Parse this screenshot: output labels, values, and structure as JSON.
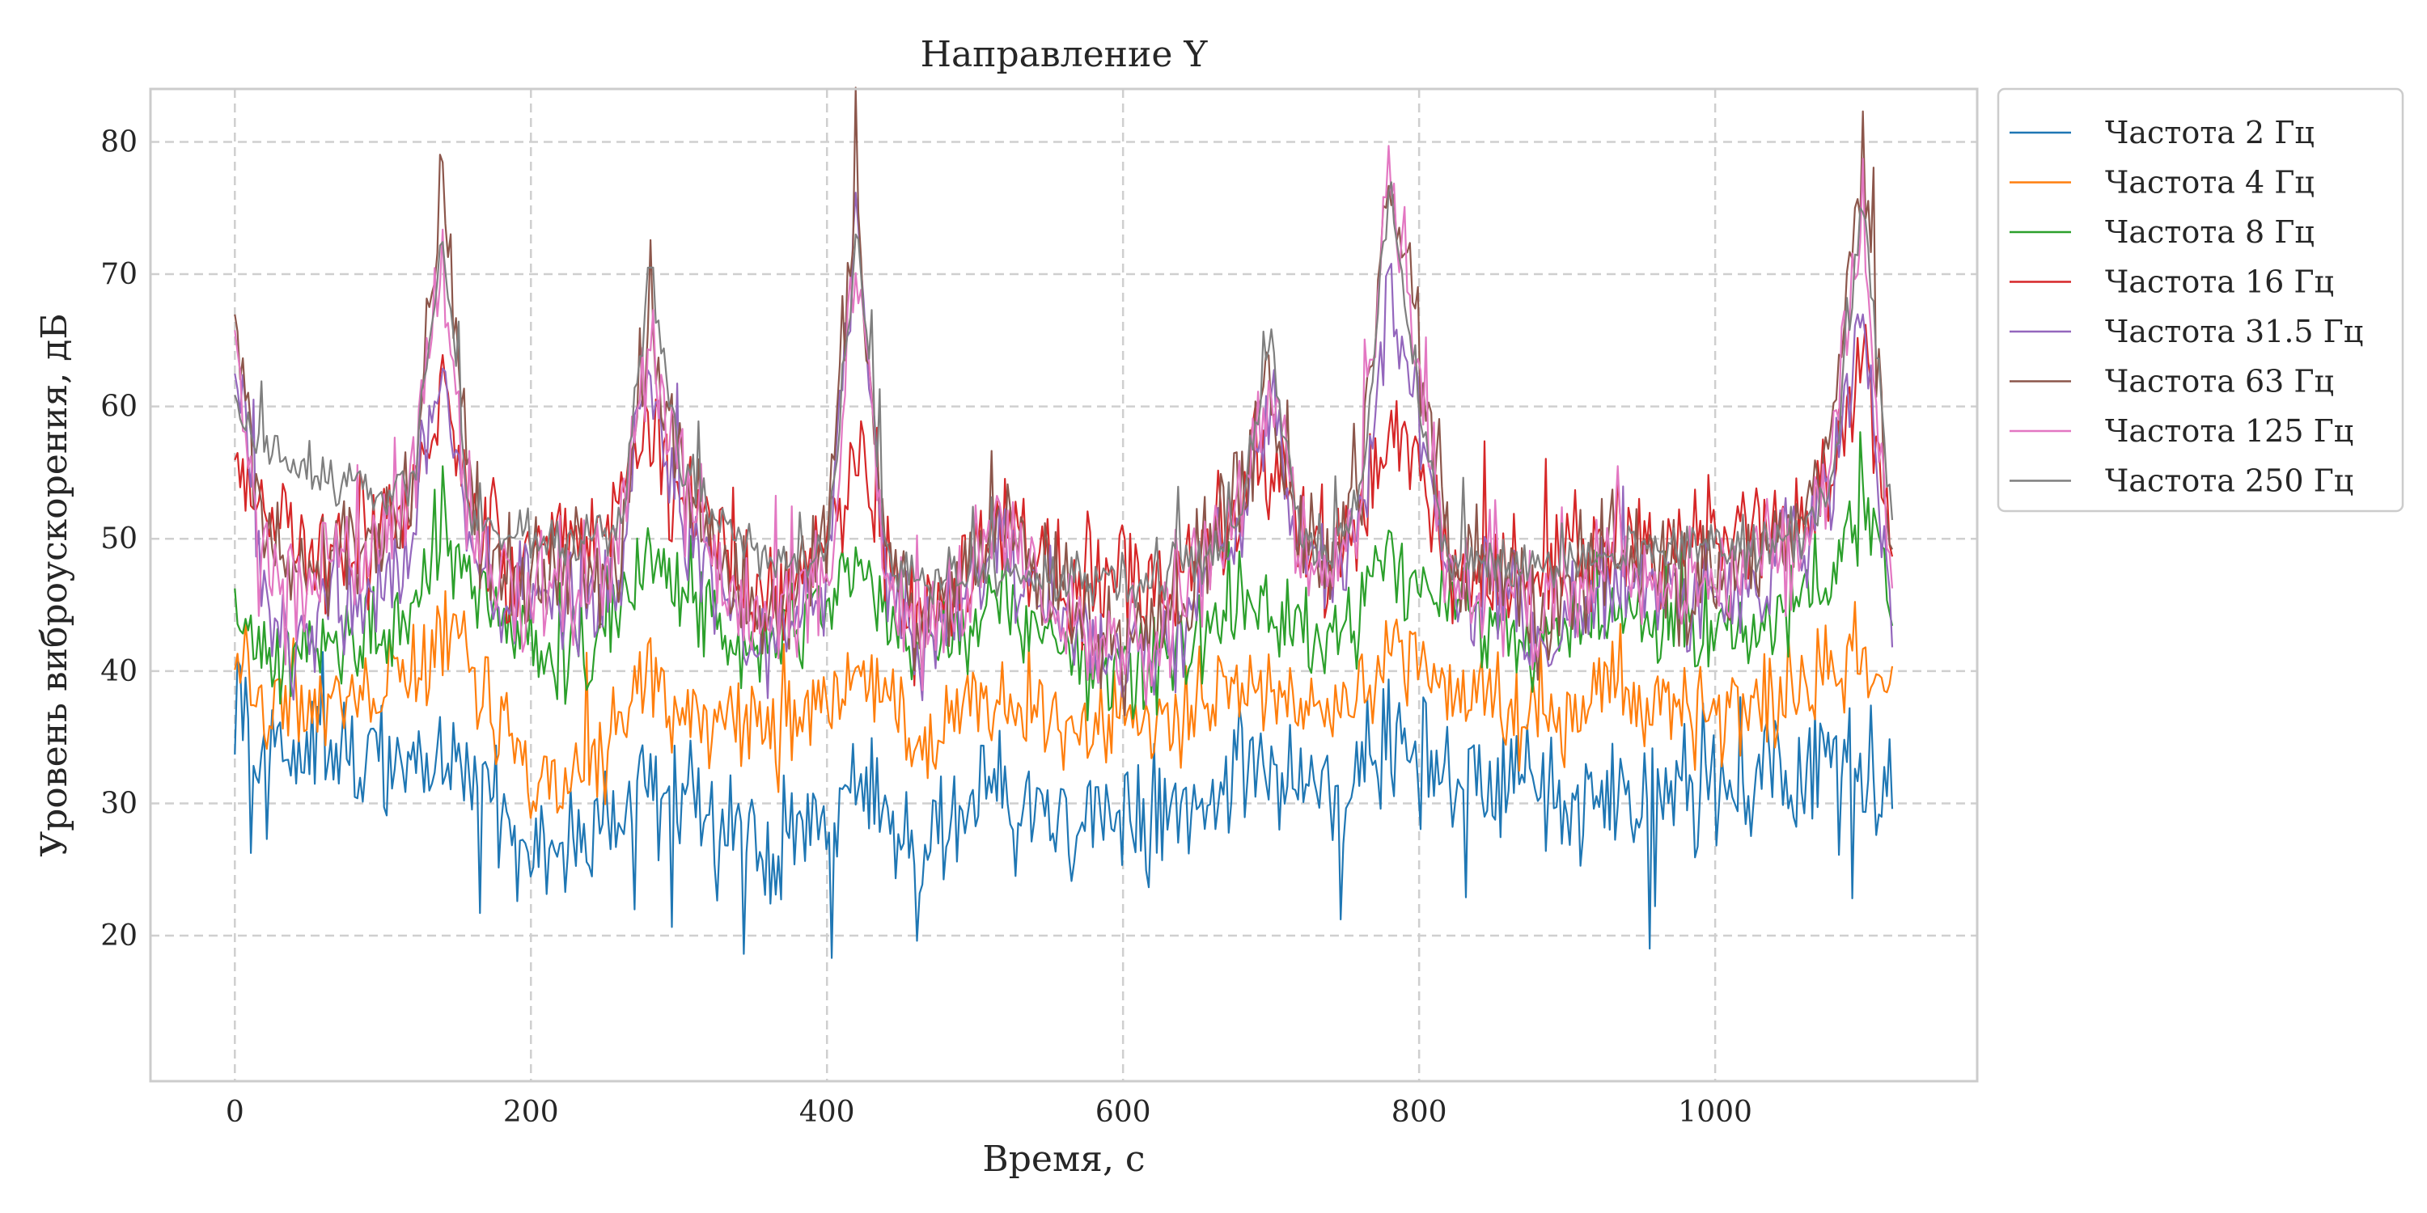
{
  "chart_data": {
    "type": "line",
    "title": "Направление Y",
    "xlabel": "Время,  с",
    "ylabel": "Уровень виброускорения,  дБ",
    "xlim": [
      -57,
      1177
    ],
    "ylim": [
      9,
      84
    ],
    "x_ticks": [
      0,
      200,
      400,
      600,
      800,
      1000
    ],
    "x_tick_labels": [
      "0",
      "200",
      "400",
      "600",
      "800",
      "1000"
    ],
    "y_ticks": [
      20,
      30,
      40,
      50,
      60,
      70,
      80
    ],
    "y_tick_labels": [
      "20",
      "30",
      "40",
      "50",
      "60",
      "70",
      "80"
    ],
    "grid": true,
    "legend_position": "outside-top-right",
    "x_range": [
      0,
      1120
    ],
    "series": [
      {
        "name": "Частота 2 Гц",
        "color": "#1f77b4",
        "x": [
          0,
          20,
          40,
          60,
          80,
          100,
          120,
          140,
          160,
          180,
          200,
          220,
          240,
          260,
          280,
          300,
          320,
          340,
          360,
          380,
          400,
          420,
          440,
          460,
          480,
          500,
          520,
          540,
          560,
          580,
          600,
          620,
          640,
          660,
          680,
          700,
          720,
          740,
          760,
          780,
          800,
          820,
          840,
          860,
          880,
          900,
          920,
          940,
          960,
          980,
          1000,
          1020,
          1040,
          1060,
          1080,
          1100,
          1120
        ],
        "values": [
          38,
          33,
          34,
          35,
          33,
          32,
          33,
          35,
          32,
          29,
          27,
          26,
          27,
          29,
          31,
          30,
          29,
          28,
          27,
          28,
          29,
          31,
          29,
          27,
          28,
          29,
          31,
          29,
          28,
          29,
          30,
          29,
          30,
          32,
          33,
          32,
          31,
          30,
          32,
          34,
          33,
          31,
          32,
          32,
          31,
          30,
          31,
          32,
          31,
          31,
          32,
          31,
          32,
          32,
          33,
          33,
          31
        ]
      },
      {
        "name": "Частота 4 Гц",
        "color": "#ff7f0e",
        "x": [
          0,
          20,
          40,
          60,
          80,
          100,
          120,
          140,
          160,
          180,
          200,
          220,
          240,
          260,
          280,
          300,
          320,
          340,
          360,
          380,
          400,
          420,
          440,
          460,
          480,
          500,
          520,
          540,
          560,
          580,
          600,
          620,
          640,
          660,
          680,
          700,
          720,
          740,
          760,
          780,
          800,
          820,
          840,
          860,
          880,
          900,
          920,
          940,
          960,
          980,
          1000,
          1020,
          1040,
          1060,
          1080,
          1100,
          1120
        ],
        "values": [
          41,
          37,
          37,
          38,
          38,
          39,
          40,
          43,
          40,
          36,
          33,
          31,
          33,
          36,
          38,
          38,
          37,
          36,
          35,
          36,
          37,
          40,
          38,
          35,
          36,
          37,
          39,
          37,
          36,
          36,
          37,
          36,
          37,
          38,
          39,
          38,
          37,
          37,
          38,
          41,
          40,
          38,
          38,
          37,
          36,
          37,
          38,
          38,
          37,
          37,
          37,
          37,
          38,
          38,
          40,
          42,
          37
        ]
      },
      {
        "name": "Частота 8 Гц",
        "color": "#2ca02c",
        "x": [
          0,
          20,
          40,
          60,
          80,
          100,
          120,
          140,
          160,
          180,
          200,
          220,
          240,
          260,
          280,
          300,
          320,
          340,
          360,
          380,
          400,
          420,
          440,
          460,
          480,
          500,
          520,
          540,
          560,
          580,
          600,
          620,
          640,
          660,
          680,
          700,
          720,
          740,
          760,
          780,
          800,
          820,
          840,
          860,
          880,
          900,
          920,
          940,
          960,
          980,
          1000,
          1020,
          1040,
          1060,
          1080,
          1100,
          1120
        ],
        "values": [
          45,
          40,
          41,
          42,
          42,
          43,
          45,
          50,
          47,
          44,
          42,
          41,
          42,
          45,
          48,
          46,
          44,
          42,
          41,
          43,
          45,
          48,
          44,
          41,
          42,
          44,
          46,
          43,
          41,
          40,
          40,
          40,
          42,
          44,
          46,
          45,
          43,
          43,
          45,
          49,
          47,
          45,
          44,
          43,
          42,
          43,
          44,
          44,
          43,
          43,
          43,
          43,
          44,
          45,
          47,
          52,
          45
        ]
      },
      {
        "name": "Частота 16 Гц",
        "color": "#d62728",
        "x": [
          0,
          20,
          40,
          60,
          80,
          100,
          120,
          140,
          160,
          180,
          200,
          220,
          240,
          260,
          280,
          300,
          320,
          340,
          360,
          380,
          400,
          420,
          440,
          460,
          480,
          500,
          520,
          540,
          560,
          580,
          600,
          620,
          640,
          660,
          680,
          700,
          720,
          740,
          760,
          780,
          800,
          820,
          840,
          860,
          880,
          900,
          920,
          940,
          960,
          980,
          1000,
          1020,
          1040,
          1060,
          1080,
          1100,
          1120
        ],
        "values": [
          56,
          51,
          50,
          49,
          49,
          50,
          53,
          62,
          52,
          48,
          49,
          50,
          50,
          52,
          58,
          54,
          51,
          47,
          45,
          47,
          50,
          57,
          48,
          44,
          46,
          48,
          51,
          48,
          46,
          45,
          46,
          47,
          48,
          50,
          52,
          56,
          50,
          49,
          52,
          59,
          56,
          48,
          47,
          48,
          47,
          48,
          49,
          50,
          49,
          49,
          50,
          50,
          51,
          52,
          56,
          63,
          48
        ]
      },
      {
        "name": "Частота 31.5 Гц",
        "color": "#9467bd",
        "x": [
          0,
          20,
          40,
          60,
          80,
          100,
          120,
          140,
          160,
          180,
          200,
          220,
          240,
          260,
          280,
          300,
          320,
          340,
          360,
          380,
          400,
          420,
          440,
          460,
          480,
          500,
          520,
          540,
          560,
          580,
          600,
          620,
          640,
          660,
          680,
          700,
          720,
          740,
          760,
          780,
          800,
          820,
          840,
          860,
          880,
          900,
          920,
          940,
          960,
          980,
          1000,
          1020,
          1040,
          1060,
          1080,
          1100,
          1120
        ],
        "values": [
          64,
          45,
          42,
          44,
          45,
          46,
          50,
          64,
          48,
          44,
          45,
          46,
          44,
          46,
          62,
          52,
          47,
          44,
          42,
          44,
          47,
          74,
          46,
          41,
          43,
          46,
          50,
          46,
          43,
          41,
          40,
          41,
          44,
          48,
          52,
          60,
          48,
          46,
          52,
          68,
          60,
          47,
          45,
          46,
          42,
          44,
          46,
          47,
          45,
          44,
          46,
          46,
          48,
          49,
          55,
          67,
          42
        ]
      },
      {
        "name": "Частота 63 Гц",
        "color": "#8c564b",
        "x": [
          0,
          20,
          40,
          60,
          80,
          100,
          120,
          140,
          160,
          180,
          200,
          220,
          240,
          260,
          280,
          300,
          320,
          340,
          360,
          380,
          400,
          420,
          440,
          460,
          480,
          500,
          520,
          540,
          560,
          580,
          600,
          620,
          640,
          660,
          680,
          700,
          720,
          740,
          760,
          780,
          800,
          820,
          840,
          860,
          880,
          900,
          920,
          940,
          960,
          980,
          1000,
          1020,
          1040,
          1060,
          1080,
          1100,
          1120
        ],
        "values": [
          66,
          50,
          47,
          48,
          49,
          50,
          54,
          76,
          52,
          46,
          47,
          48,
          47,
          49,
          66,
          56,
          50,
          46,
          44,
          46,
          49,
          77,
          48,
          43,
          45,
          48,
          52,
          48,
          45,
          43,
          42,
          43,
          46,
          50,
          54,
          62,
          50,
          48,
          54,
          78,
          64,
          49,
          47,
          48,
          44,
          46,
          48,
          49,
          47,
          46,
          48,
          48,
          50,
          51,
          58,
          78,
          47
        ]
      },
      {
        "name": "Частота 125 Гц",
        "color": "#e377c2",
        "x": [
          0,
          20,
          40,
          60,
          80,
          100,
          120,
          140,
          160,
          180,
          200,
          220,
          240,
          260,
          280,
          300,
          320,
          340,
          360,
          380,
          400,
          420,
          440,
          460,
          480,
          500,
          520,
          540,
          560,
          580,
          600,
          620,
          640,
          660,
          680,
          700,
          720,
          740,
          760,
          780,
          800,
          820,
          840,
          860,
          880,
          900,
          920,
          940,
          960,
          980,
          1000,
          1020,
          1040,
          1060,
          1080,
          1100,
          1120
        ],
        "values": [
          62,
          47,
          45,
          47,
          48,
          49,
          53,
          71,
          50,
          45,
          46,
          47,
          46,
          48,
          65,
          55,
          49,
          45,
          43,
          45,
          48,
          72,
          47,
          42,
          44,
          47,
          51,
          47,
          44,
          42,
          41,
          42,
          45,
          49,
          53,
          61,
          49,
          47,
          53,
          78,
          62,
          48,
          46,
          47,
          43,
          45,
          47,
          48,
          46,
          45,
          47,
          47,
          49,
          50,
          57,
          75,
          43
        ]
      },
      {
        "name": "Частота 250 Гц",
        "color": "#7f7f7f",
        "x": [
          0,
          20,
          40,
          60,
          80,
          100,
          120,
          140,
          160,
          180,
          200,
          220,
          240,
          260,
          280,
          300,
          320,
          340,
          360,
          380,
          400,
          420,
          440,
          460,
          480,
          500,
          520,
          540,
          560,
          580,
          600,
          620,
          640,
          660,
          680,
          700,
          720,
          740,
          760,
          780,
          800,
          820,
          840,
          860,
          880,
          900,
          920,
          940,
          960,
          980,
          1000,
          1020,
          1040,
          1060,
          1080,
          1100,
          1120
        ],
        "values": [
          60,
          57,
          56,
          55,
          54,
          53,
          54,
          73,
          51,
          50,
          50,
          50,
          50,
          50,
          71,
          56,
          52,
          50,
          48,
          48,
          48,
          74,
          48,
          47,
          47,
          47,
          48,
          47,
          47,
          47,
          47,
          47,
          48,
          49,
          52,
          65,
          50,
          49,
          52,
          77,
          60,
          48,
          48,
          48,
          48,
          48,
          49,
          49,
          49,
          49,
          49,
          49,
          50,
          50,
          55,
          76,
          50
        ]
      }
    ]
  }
}
